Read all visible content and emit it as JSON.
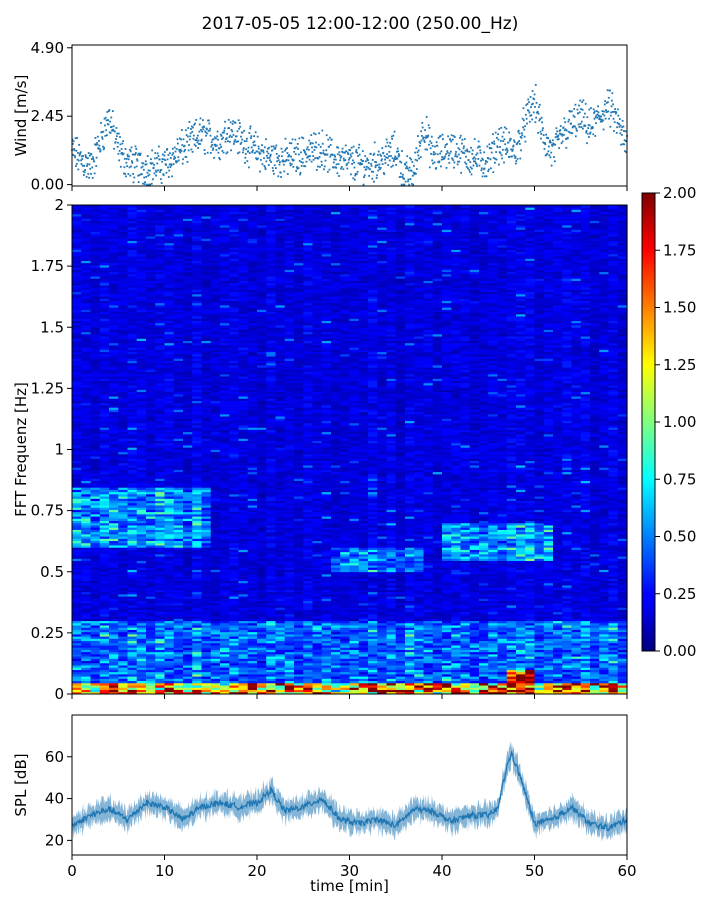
{
  "figure": {
    "title": "2017-05-05 12:00-12:00 (250.00_Hz)"
  },
  "chart_data": [
    {
      "type": "scatter",
      "name": "wind-panel",
      "ylabel": "Wind [m/s]",
      "xlabel": "",
      "xlim": [
        0,
        60
      ],
      "ylim": [
        -0.05,
        5.0
      ],
      "yticks": [
        0.0,
        2.45,
        4.9
      ],
      "ytick_labels": [
        "0.00",
        "2.45",
        "4.90"
      ],
      "x_ticks": [
        0,
        10,
        20,
        30,
        40,
        50,
        60
      ],
      "x_tick_labels_shown": false,
      "marker_color": "#1f77b4",
      "x": [
        0,
        2,
        4,
        5,
        6,
        8,
        10,
        12,
        14,
        16,
        17,
        19,
        21,
        23,
        25,
        27,
        28,
        30,
        32,
        34,
        35,
        36,
        37,
        38,
        39,
        41,
        43,
        45,
        46,
        48,
        49,
        50,
        51,
        52,
        53,
        55,
        56,
        58,
        59,
        60
      ],
      "y": [
        1.2,
        0.6,
        2.4,
        1.3,
        0.8,
        0.6,
        0.7,
        1.3,
        1.8,
        1.5,
        2.0,
        1.4,
        1.0,
        0.9,
        1.1,
        1.3,
        1.0,
        0.8,
        0.7,
        1.0,
        1.2,
        0.3,
        0.5,
        2.1,
        1.0,
        1.3,
        1.0,
        0.8,
        1.5,
        1.2,
        2.2,
        3.0,
        1.6,
        1.1,
        1.8,
        2.4,
        2.0,
        2.8,
        2.2,
        1.3
      ],
      "grid": false
    },
    {
      "type": "heatmap",
      "name": "spectrogram-panel",
      "ylabel": "FFT Frequenz [Hz]",
      "xlabel": "",
      "xlim": [
        0,
        60
      ],
      "ylim": [
        0,
        2
      ],
      "yticks": [
        0,
        0.25,
        0.5,
        0.75,
        1,
        1.25,
        1.5,
        1.75,
        2
      ],
      "ytick_labels": [
        "0",
        "0.25",
        "0.5",
        "0.75",
        "1",
        "1.25",
        "1.5",
        "1.75",
        "2"
      ],
      "x_ticks": [
        0,
        10,
        20,
        30,
        40,
        50,
        60
      ],
      "x_tick_labels_shown": false,
      "colormap": "jet",
      "colorbar": {
        "vmin": 0.0,
        "vmax": 2.0,
        "ticks": [
          0.0,
          0.25,
          0.5,
          0.75,
          1.0,
          1.25,
          1.5,
          1.75,
          2.0
        ],
        "tick_labels": [
          "0.00",
          "0.25",
          "0.50",
          "0.75",
          "1.00",
          "1.25",
          "1.50",
          "1.75",
          "2.00"
        ]
      },
      "background_level": 0.18,
      "features": [
        {
          "desc": "strong low-frequency band",
          "freq_range": [
            0,
            0.05
          ],
          "level": 1.6
        },
        {
          "desc": "elevated band",
          "freq_range": [
            0.05,
            0.3
          ],
          "level": 0.5
        },
        {
          "desc": "enhanced patch",
          "time_range": [
            0,
            15
          ],
          "freq_range": [
            0.6,
            0.85
          ],
          "level": 0.6
        },
        {
          "desc": "enhanced patch",
          "time_range": [
            28,
            38
          ],
          "freq_range": [
            0.5,
            0.6
          ],
          "level": 0.55
        },
        {
          "desc": "enhanced patch",
          "time_range": [
            40,
            52
          ],
          "freq_range": [
            0.55,
            0.7
          ],
          "level": 0.6
        },
        {
          "desc": "maximum low-frequency energy",
          "time_range": [
            47,
            50
          ],
          "freq_range": [
            0,
            0.1
          ],
          "level": 2.0
        }
      ],
      "grid": false
    },
    {
      "type": "line",
      "name": "spl-panel",
      "ylabel": "SPL [dB]",
      "xlabel": "time [min]",
      "xlim": [
        0,
        60
      ],
      "ylim": [
        13,
        80
      ],
      "yticks": [
        20,
        40,
        60
      ],
      "ytick_labels": [
        "20",
        "40",
        "60"
      ],
      "x_ticks": [
        0,
        10,
        20,
        30,
        40,
        50,
        60
      ],
      "x_tick_labels": [
        "0",
        "10",
        "20",
        "30",
        "40",
        "50",
        "60"
      ],
      "line_color": "#1f77b4",
      "x": [
        0,
        2,
        4,
        6,
        8,
        10,
        12,
        14,
        16,
        18,
        20,
        21.5,
        23,
        25,
        27,
        29,
        31,
        33,
        35,
        37,
        39,
        41,
        43,
        45,
        46,
        47,
        47.5,
        48.5,
        50,
        52,
        54,
        56,
        58,
        60
      ],
      "y": [
        27,
        32,
        35,
        30,
        38,
        36,
        30,
        36,
        38,
        36,
        38,
        44,
        34,
        36,
        40,
        30,
        28,
        30,
        27,
        35,
        34,
        29,
        32,
        32,
        35,
        55,
        62,
        50,
        28,
        30,
        36,
        28,
        26,
        30
      ],
      "grid": false
    }
  ]
}
